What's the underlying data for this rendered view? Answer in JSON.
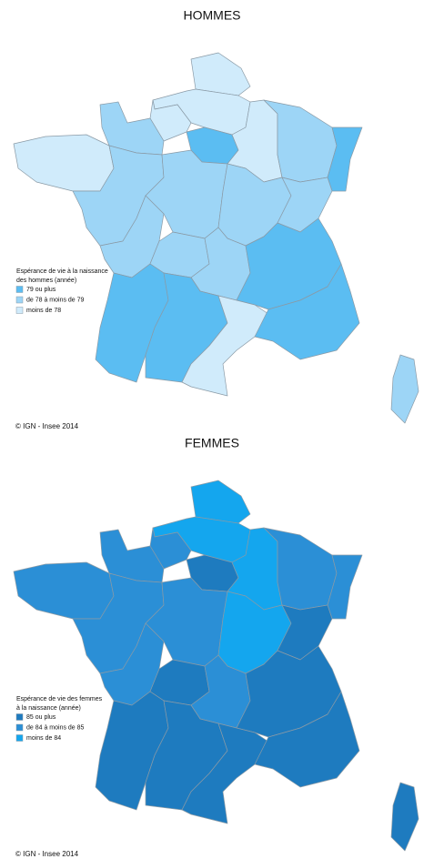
{
  "maps": [
    {
      "title": "HOMMES",
      "legend_title": [
        "Espérance de vie à la naissance",
        "des hommes (année)"
      ],
      "legend": [
        {
          "label": "79 ou plus",
          "color": "#5bbdf2"
        },
        {
          "label": "de 78 à moins de 79",
          "color": "#9dd5f6"
        },
        {
          "label": "moins de 78",
          "color": "#d0ebfb"
        }
      ],
      "credit": "© IGN - Insee 2014"
    },
    {
      "title": "FEMMES",
      "legend_title": [
        "Espérance de vie des femmes",
        "à la naissance (année)"
      ],
      "legend": [
        {
          "label": "85 ou plus",
          "color": "#1e7bbf"
        },
        {
          "label": "de 84 à moins de 85",
          "color": "#2b8fd6"
        },
        {
          "label": "moins de 84",
          "color": "#14a6ee"
        }
      ],
      "credit": "© IGN - Insee 2014"
    }
  ]
}
